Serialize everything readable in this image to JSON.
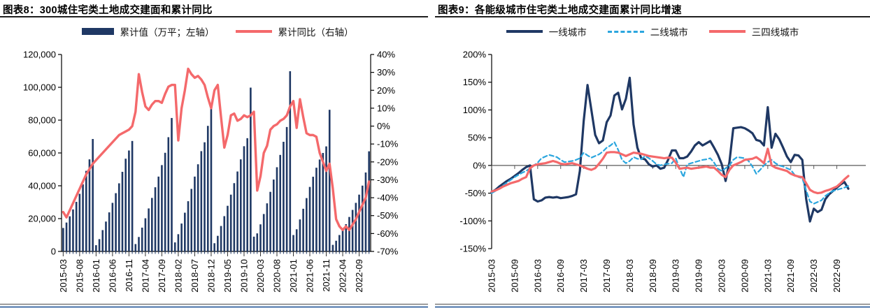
{
  "page_bg": "#ffffff",
  "chart_data": [
    {
      "type": "bar",
      "title": "图表8：300城住宅类土地成交建面和累计同比",
      "legend": {
        "bar_label": "累计值（万平；左轴）",
        "line_label": "累计同比（右轴）"
      },
      "bar_color": "#1F3864",
      "line_color": "#F4696B",
      "x_monthly_start": "2015-03",
      "x_tick_labels": [
        "2015-03",
        "2015-08",
        "2016-01",
        "2016-06",
        "2016-11",
        "2017-04",
        "2017-09",
        "2018-02",
        "2018-07",
        "2018-12",
        "2019-05",
        "2019-10",
        "2020-03",
        "2020-08",
        "2021-01",
        "2021-06",
        "2021-11",
        "2022-04",
        "2022-09"
      ],
      "y_left": {
        "label_ticks": [
          "120,000",
          "100,000",
          "80,000",
          "60,000",
          "40,000",
          "20,000",
          "0"
        ],
        "min": 0,
        "max": 120000
      },
      "y_right": {
        "label_ticks": [
          "40%",
          "30%",
          "20%",
          "10%",
          "0%",
          "-10%",
          "-20%",
          "-30%",
          "-40%",
          "-50%",
          "-60%",
          "-70%"
        ],
        "min": -70,
        "max": 40
      },
      "bars": [
        14300,
        17600,
        21400,
        25600,
        30200,
        35100,
        40900,
        49100,
        56100,
        68500,
        3800,
        7500,
        13000,
        18200,
        23800,
        29600,
        35500,
        41500,
        48500,
        56500,
        61500,
        67300,
        4500,
        8800,
        14500,
        20200,
        26200,
        32600,
        39100,
        45600,
        52600,
        60100,
        69600,
        81300,
        5500,
        10500,
        17000,
        23600,
        30600,
        38100,
        45600,
        53100,
        61100,
        66500,
        76500,
        88500,
        5000,
        9500,
        15500,
        21500,
        27800,
        34600,
        41600,
        48700,
        56100,
        64100,
        69000,
        99800,
        9000,
        11000,
        16500,
        22800,
        29300,
        36300,
        43800,
        51300,
        58800,
        66800,
        75800,
        109800,
        10000,
        13500,
        19500,
        26000,
        32500,
        39300,
        45500,
        51000,
        56000,
        60000,
        64000,
        86300,
        4000,
        6500,
        10000,
        13200,
        16600,
        21000,
        25300,
        29600,
        34600,
        40100,
        48100,
        61000
      ],
      "line": [
        -48,
        -51,
        -47,
        -43,
        -39,
        -35,
        -31,
        -27,
        -24,
        -21,
        -19,
        -17,
        -15,
        -13,
        -11,
        -9,
        -7,
        -5,
        -4,
        -3,
        -2,
        0,
        8,
        29,
        19,
        11,
        9,
        12,
        14,
        14,
        13,
        18,
        22,
        23,
        23,
        -8,
        10,
        20,
        32,
        29,
        27,
        28,
        26,
        23,
        16,
        10,
        20,
        23,
        5,
        -12,
        -5,
        6,
        7,
        3,
        4,
        6,
        5,
        6,
        8,
        -36,
        -28,
        -15,
        -11,
        -2,
        0,
        1,
        3,
        4,
        6,
        11,
        14,
        -1,
        15,
        5,
        -4,
        -5,
        -5,
        -6,
        -15,
        -20,
        -25,
        -21,
        -35,
        -52,
        -56,
        -58,
        -56,
        -58,
        -55,
        -52,
        -48,
        -44,
        -40,
        -31
      ]
    },
    {
      "type": "line",
      "title": "图表9：各能级城市住宅类土地成交建面累计同比增速",
      "x_monthly_start": "2015-03",
      "x_tick_labels": [
        "2015-03",
        "2015-09",
        "2016-03",
        "2016-09",
        "2017-03",
        "2017-09",
        "2018-03",
        "2018-09",
        "2019-03",
        "2019-09",
        "2020-03",
        "2020-09",
        "2021-03",
        "2021-09",
        "2022-03",
        "2022-09"
      ],
      "y_ticks": [
        "200%",
        "150%",
        "100%",
        "50%",
        "0%",
        "-50%",
        "-100%",
        "-150%"
      ],
      "y_min": -150,
      "y_max": 200,
      "zero_line_color": "#595959",
      "series": [
        {
          "name": "一线城市",
          "color": "#1F3864",
          "style": "solid",
          "values": [
            -48,
            -44,
            -38,
            -33,
            -28,
            -24,
            -19,
            -14,
            -8,
            -3,
            0,
            -61,
            -65,
            -63,
            -58,
            -57,
            -58,
            -57,
            -59,
            -58,
            -57,
            -55,
            -52,
            -10,
            80,
            145,
            100,
            55,
            40,
            45,
            78,
            90,
            126,
            131,
            101,
            120,
            158,
            74,
            32,
            13,
            11,
            2,
            -2,
            0,
            -6,
            -4,
            10,
            27,
            27,
            13,
            13,
            16,
            25,
            36,
            42,
            36,
            40,
            44,
            32,
            19,
            2,
            -28,
            6,
            67,
            68,
            69,
            67,
            63,
            58,
            46,
            44,
            36,
            105,
            32,
            57,
            47,
            32,
            16,
            6,
            19,
            18,
            10,
            -60,
            -101,
            -78,
            -84,
            -80,
            -61,
            -52,
            -46,
            -40,
            -34,
            -30,
            -42
          ]
        },
        {
          "name": "二线城市",
          "color": "#2BA6DE",
          "style": "dashed",
          "values": [
            -50,
            -46,
            -41,
            -36,
            -31,
            -26,
            -21,
            -17,
            -13,
            -10,
            -5,
            0,
            5,
            13,
            16,
            19,
            17,
            15,
            10,
            6,
            7,
            8,
            10,
            13,
            23,
            18,
            14,
            17,
            20,
            25,
            32,
            36,
            42,
            28,
            10,
            4,
            8,
            15,
            12,
            11,
            17,
            13,
            8,
            2,
            0,
            2,
            3,
            4,
            13,
            -5,
            -21,
            2,
            4,
            6,
            8,
            10,
            11,
            13,
            5,
            -6,
            -10,
            -5,
            0,
            10,
            15,
            14,
            13,
            8,
            -2,
            -15,
            -8,
            0,
            6,
            10,
            4,
            0,
            -2,
            -5,
            -8,
            -17,
            -21,
            -23,
            -45,
            -65,
            -69,
            -66,
            -63,
            -55,
            -50,
            -46,
            -44,
            -42,
            -40,
            -37
          ]
        },
        {
          "name": "三四线城市",
          "color": "#F4696B",
          "style": "solid",
          "values": [
            -47,
            -45,
            -42,
            -38,
            -35,
            -32,
            -30,
            -28,
            -24,
            -21,
            -5,
            0,
            2,
            3,
            4,
            6,
            8,
            6,
            3,
            2,
            3,
            4,
            2,
            0,
            -3,
            -6,
            -8,
            -5,
            3,
            12,
            23,
            24,
            24,
            23,
            20,
            17,
            20,
            23,
            22,
            21,
            19,
            17,
            16,
            15,
            14,
            13,
            14,
            14,
            5,
            -6,
            -5,
            -4,
            -6,
            -5,
            -4,
            -3,
            -2,
            -4,
            -4,
            -10,
            -17,
            -21,
            -8,
            0,
            3,
            6,
            10,
            11,
            12,
            15,
            10,
            4,
            30,
            0,
            -4,
            -6,
            -8,
            -10,
            -15,
            -18,
            -20,
            -21,
            -32,
            -44,
            -48,
            -50,
            -49,
            -46,
            -44,
            -41,
            -38,
            -32,
            -25,
            -19
          ]
        }
      ]
    }
  ]
}
